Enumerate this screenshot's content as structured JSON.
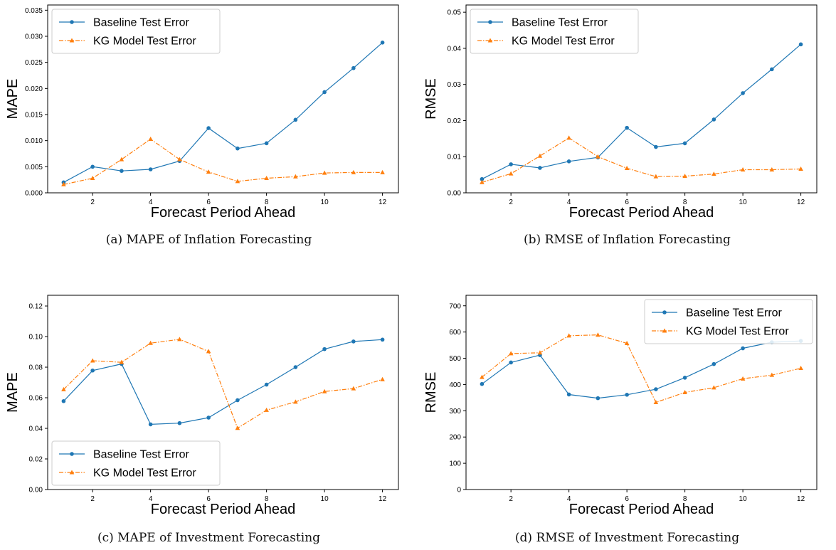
{
  "chart_data": [
    {
      "type": "line",
      "caption": "(a) MAPE of Inflation Forecasting",
      "xlabel": "Forecast Period Ahead",
      "ylabel": "MAPE",
      "x": [
        1,
        2,
        3,
        4,
        5,
        6,
        7,
        8,
        9,
        10,
        11,
        12
      ],
      "xticks": [
        2,
        4,
        6,
        8,
        10,
        12
      ],
      "ylim": [
        0,
        0.036
      ],
      "yticks": [
        "0.000",
        "0.005",
        "0.010",
        "0.015",
        "0.020",
        "0.025",
        "0.030",
        "0.035"
      ],
      "legend": "upper-left",
      "series": [
        {
          "name": "Baseline Test Error",
          "values": [
            0.002,
            0.005,
            0.0042,
            0.0045,
            0.0061,
            0.0124,
            0.0085,
            0.0095,
            0.014,
            0.0193,
            0.0239,
            0.0288
          ]
        },
        {
          "name": "KG Model Test Error",
          "values": [
            0.0016,
            0.0028,
            0.0064,
            0.0103,
            0.0064,
            0.004,
            0.0022,
            0.0028,
            0.0031,
            0.0038,
            0.0039,
            0.0039
          ]
        }
      ]
    },
    {
      "type": "line",
      "caption": "(b) RMSE of Inflation Forecasting",
      "xlabel": "Forecast Period Ahead",
      "ylabel": "RMSE",
      "x": [
        1,
        2,
        3,
        4,
        5,
        6,
        7,
        8,
        9,
        10,
        11,
        12
      ],
      "xticks": [
        2,
        4,
        6,
        8,
        10,
        12
      ],
      "ylim": [
        0,
        0.052
      ],
      "yticks": [
        "0.00",
        "0.01",
        "0.02",
        "0.03",
        "0.04",
        "0.05"
      ],
      "legend": "upper-left",
      "series": [
        {
          "name": "Baseline Test Error",
          "values": [
            0.0038,
            0.0079,
            0.0069,
            0.0087,
            0.0098,
            0.018,
            0.0127,
            0.0137,
            0.0203,
            0.0276,
            0.0342,
            0.0411
          ]
        },
        {
          "name": "KG Model Test Error",
          "values": [
            0.0029,
            0.0053,
            0.0102,
            0.0152,
            0.01,
            0.0068,
            0.0045,
            0.0046,
            0.0052,
            0.0064,
            0.0064,
            0.0066
          ]
        }
      ]
    },
    {
      "type": "line",
      "caption": "(c) MAPE of Investment Forecasting",
      "xlabel": "Forecast Period Ahead",
      "ylabel": "MAPE",
      "x": [
        1,
        2,
        3,
        4,
        5,
        6,
        7,
        8,
        9,
        10,
        11,
        12
      ],
      "xticks": [
        2,
        4,
        6,
        8,
        10,
        12
      ],
      "ylim": [
        0,
        0.127
      ],
      "yticks": [
        "0.00",
        "0.02",
        "0.04",
        "0.06",
        "0.08",
        "0.10",
        "0.12"
      ],
      "legend": "lower-left",
      "series": [
        {
          "name": "Baseline Test Error",
          "values": [
            0.0578,
            0.0778,
            0.0821,
            0.0426,
            0.0434,
            0.047,
            0.0584,
            0.0686,
            0.08,
            0.0918,
            0.0968,
            0.098
          ]
        },
        {
          "name": "KG Model Test Error",
          "values": [
            0.0654,
            0.0842,
            0.0832,
            0.0957,
            0.0982,
            0.0903,
            0.0401,
            0.0519,
            0.0573,
            0.0641,
            0.066,
            0.072
          ]
        }
      ]
    },
    {
      "type": "line",
      "caption": "(d) RMSE of Investment Forecasting",
      "xlabel": "Forecast Period Ahead",
      "ylabel": "RMSE",
      "x": [
        1,
        2,
        3,
        4,
        5,
        6,
        7,
        8,
        9,
        10,
        11,
        12
      ],
      "xticks": [
        2,
        4,
        6,
        8,
        10,
        12
      ],
      "ylim": [
        0,
        740
      ],
      "yticks": [
        "0",
        "100",
        "200",
        "300",
        "400",
        "500",
        "600",
        "700"
      ],
      "legend": "upper-right",
      "series": [
        {
          "name": "Baseline Test Error",
          "values": [
            402,
            484,
            512,
            362,
            348,
            361,
            382,
            426,
            478,
            538,
            561,
            566
          ]
        },
        {
          "name": "KG Model Test Error",
          "values": [
            428,
            518,
            521,
            586,
            589,
            557,
            332,
            370,
            388,
            422,
            436,
            462
          ]
        }
      ]
    }
  ],
  "style": {
    "baseline_color": "#1f77b4",
    "kg_color": "#ff7f0e",
    "baseline_marker": "circle",
    "kg_marker": "triangle"
  }
}
